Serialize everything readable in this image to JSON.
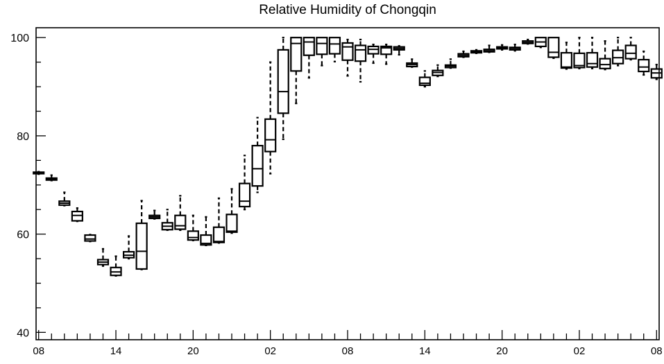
{
  "chart_data": {
    "type": "box",
    "title": "Relative Humidity of Chongqin",
    "xlabel": "",
    "ylabel": "",
    "ylim": [
      38.5,
      102
    ],
    "yticks": [
      40,
      60,
      80,
      100
    ],
    "x_tick_labels": [
      "08",
      "14",
      "20",
      "02",
      "08",
      "14",
      "20",
      "02",
      "08"
    ],
    "x_tick_label_index": [
      0,
      6,
      12,
      18,
      24,
      30,
      36,
      42,
      48
    ],
    "x_index_range": [
      -0.2,
      48.2
    ],
    "grid": false,
    "legend": "none",
    "boxes": [
      {
        "x": 0,
        "whisker_low": 72.2,
        "q1": 72.3,
        "median": 72.4,
        "q3": 72.6,
        "whisker_high": 72.7
      },
      {
        "x": 1,
        "whisker_low": 70.9,
        "q1": 71.0,
        "median": 71.2,
        "q3": 71.4,
        "whisker_high": 72.0
      },
      {
        "x": 2,
        "whisker_low": 65.8,
        "q1": 65.9,
        "median": 66.3,
        "q3": 66.7,
        "whisker_high": 68.5
      },
      {
        "x": 3,
        "whisker_low": 62.6,
        "q1": 62.7,
        "median": 63.8,
        "q3": 64.6,
        "whisker_high": 65.3
      },
      {
        "x": 4,
        "whisker_low": 58.5,
        "q1": 58.6,
        "median": 59.0,
        "q3": 59.8,
        "whisker_high": 59.9
      },
      {
        "x": 5,
        "whisker_low": 53.5,
        "q1": 53.8,
        "median": 54.3,
        "q3": 54.8,
        "whisker_high": 57.0
      },
      {
        "x": 6,
        "whisker_low": 51.5,
        "q1": 51.6,
        "median": 52.3,
        "q3": 53.2,
        "whisker_high": 55.5
      },
      {
        "x": 7,
        "whisker_low": 55.0,
        "q1": 55.2,
        "median": 55.7,
        "q3": 56.4,
        "whisker_high": 59.6
      },
      {
        "x": 8,
        "whisker_low": 52.8,
        "q1": 52.9,
        "median": 56.5,
        "q3": 62.2,
        "whisker_high": 66.8
      },
      {
        "x": 9,
        "whisker_low": 63.1,
        "q1": 63.2,
        "median": 63.5,
        "q3": 63.8,
        "whisker_high": 64.8
      },
      {
        "x": 10,
        "whisker_low": 60.8,
        "q1": 60.9,
        "median": 61.6,
        "q3": 62.3,
        "whisker_high": 65.0
      },
      {
        "x": 11,
        "whisker_low": 60.8,
        "q1": 61.0,
        "median": 61.7,
        "q3": 63.8,
        "whisker_high": 67.8
      },
      {
        "x": 12,
        "whisker_low": 58.7,
        "q1": 58.8,
        "median": 59.3,
        "q3": 60.6,
        "whisker_high": 63.8
      },
      {
        "x": 13,
        "whisker_low": 57.7,
        "q1": 57.8,
        "median": 58.1,
        "q3": 59.8,
        "whisker_high": 63.5
      },
      {
        "x": 14,
        "whisker_low": 58.2,
        "q1": 58.3,
        "median": 58.5,
        "q3": 61.4,
        "whisker_high": 67.3
      },
      {
        "x": 15,
        "whisker_low": 60.2,
        "q1": 60.4,
        "median": 60.6,
        "q3": 64.0,
        "whisker_high": 69.2
      },
      {
        "x": 16,
        "whisker_low": 65.0,
        "q1": 65.6,
        "median": 66.7,
        "q3": 70.3,
        "whisker_high": 76.0
      },
      {
        "x": 17,
        "whisker_low": 68.5,
        "q1": 69.8,
        "median": 73.3,
        "q3": 78.0,
        "whisker_high": 83.7
      },
      {
        "x": 18,
        "whisker_low": 72.3,
        "q1": 76.8,
        "median": 79.2,
        "q3": 83.4,
        "whisker_high": 95.0
      },
      {
        "x": 19,
        "whisker_low": 79.3,
        "q1": 84.6,
        "median": 89.0,
        "q3": 97.5,
        "whisker_high": 100.0
      },
      {
        "x": 20,
        "whisker_low": 86.6,
        "q1": 93.2,
        "median": 98.8,
        "q3": 100.0,
        "whisker_high": 100.0
      },
      {
        "x": 21,
        "whisker_low": 91.8,
        "q1": 96.4,
        "median": 99.1,
        "q3": 100.0,
        "whisker_high": 100.0
      },
      {
        "x": 22,
        "whisker_low": 94.3,
        "q1": 96.6,
        "median": 98.8,
        "q3": 100.0,
        "whisker_high": 100.0
      },
      {
        "x": 23,
        "whisker_low": 95.1,
        "q1": 96.7,
        "median": 98.7,
        "q3": 100.0,
        "whisker_high": 100.0
      },
      {
        "x": 24,
        "whisker_low": 92.2,
        "q1": 95.4,
        "median": 98.1,
        "q3": 98.9,
        "whisker_high": 99.6
      },
      {
        "x": 25,
        "whisker_low": 91.0,
        "q1": 95.2,
        "median": 97.5,
        "q3": 98.4,
        "whisker_high": 99.6
      },
      {
        "x": 26,
        "whisker_low": 94.8,
        "q1": 96.7,
        "median": 97.6,
        "q3": 98.2,
        "whisker_high": 98.6
      },
      {
        "x": 27,
        "whisker_low": 94.6,
        "q1": 96.6,
        "median": 97.9,
        "q3": 98.2,
        "whisker_high": 98.6
      },
      {
        "x": 28,
        "whisker_low": 96.5,
        "q1": 97.5,
        "median": 97.8,
        "q3": 98.1,
        "whisker_high": 98.3
      },
      {
        "x": 29,
        "whisker_low": 94.0,
        "q1": 94.1,
        "median": 94.5,
        "q3": 94.8,
        "whisker_high": 95.6
      },
      {
        "x": 30,
        "whisker_low": 90.0,
        "q1": 90.3,
        "median": 90.7,
        "q3": 91.9,
        "whisker_high": 93.2
      },
      {
        "x": 31,
        "whisker_low": 92.1,
        "q1": 92.3,
        "median": 92.9,
        "q3": 93.3,
        "whisker_high": 94.4
      },
      {
        "x": 32,
        "whisker_low": 93.8,
        "q1": 93.9,
        "median": 94.2,
        "q3": 94.4,
        "whisker_high": 95.6
      },
      {
        "x": 33,
        "whisker_low": 96.0,
        "q1": 96.1,
        "median": 96.4,
        "q3": 96.7,
        "whisker_high": 97.2
      },
      {
        "x": 34,
        "whisker_low": 96.8,
        "q1": 96.9,
        "median": 97.1,
        "q3": 97.3,
        "whisker_high": 97.5
      },
      {
        "x": 35,
        "whisker_low": 97.0,
        "q1": 97.1,
        "median": 97.3,
        "q3": 97.6,
        "whisker_high": 98.4
      },
      {
        "x": 36,
        "whisker_low": 97.5,
        "q1": 97.7,
        "median": 97.9,
        "q3": 98.1,
        "whisker_high": 98.5
      },
      {
        "x": 37,
        "whisker_low": 97.3,
        "q1": 97.5,
        "median": 97.8,
        "q3": 98.0,
        "whisker_high": 98.6
      },
      {
        "x": 38,
        "whisker_low": 98.7,
        "q1": 98.8,
        "median": 99.0,
        "q3": 99.3,
        "whisker_high": 99.6
      },
      {
        "x": 39,
        "whisker_low": 98.0,
        "q1": 98.2,
        "median": 99.1,
        "q3": 100.0,
        "whisker_high": 100.0
      },
      {
        "x": 40,
        "whisker_low": 95.8,
        "q1": 96.0,
        "median": 97.0,
        "q3": 100.0,
        "whisker_high": 100.0
      },
      {
        "x": 41,
        "whisker_low": 93.6,
        "q1": 93.8,
        "median": 94.0,
        "q3": 96.9,
        "whisker_high": 99.0
      },
      {
        "x": 42,
        "whisker_low": 93.7,
        "q1": 93.9,
        "median": 94.3,
        "q3": 96.8,
        "whisker_high": 100.0
      },
      {
        "x": 43,
        "whisker_low": 93.7,
        "q1": 94.0,
        "median": 94.7,
        "q3": 96.9,
        "whisker_high": 100.0
      },
      {
        "x": 44,
        "whisker_low": 93.5,
        "q1": 93.7,
        "median": 94.5,
        "q3": 95.7,
        "whisker_high": 99.3
      },
      {
        "x": 45,
        "whisker_low": 94.3,
        "q1": 94.7,
        "median": 95.9,
        "q3": 97.4,
        "whisker_high": 100.0
      },
      {
        "x": 46,
        "whisker_low": 95.5,
        "q1": 95.7,
        "median": 96.8,
        "q3": 98.4,
        "whisker_high": 100.0
      },
      {
        "x": 47,
        "whisker_low": 92.4,
        "q1": 93.1,
        "median": 94.0,
        "q3": 95.5,
        "whisker_high": 97.2
      },
      {
        "x": 48,
        "whisker_low": 91.5,
        "q1": 91.8,
        "median": 92.8,
        "q3": 93.6,
        "whisker_high": 94.5
      }
    ]
  }
}
